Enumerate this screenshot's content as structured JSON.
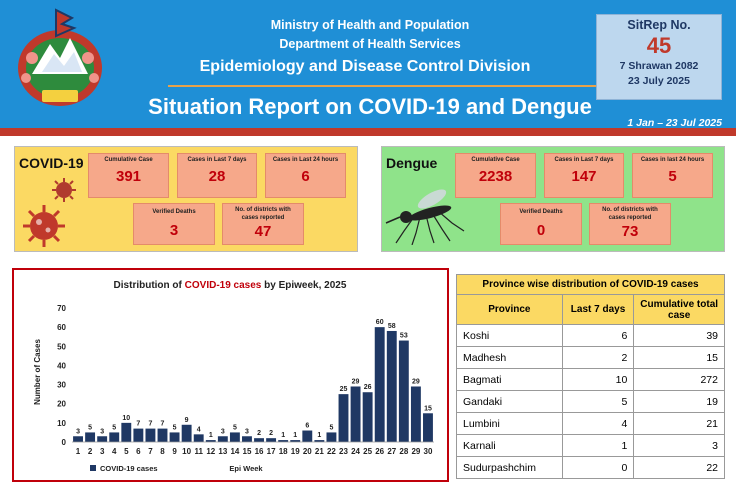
{
  "header": {
    "ministry": "Ministry of Health and Population",
    "department": "Department of Health Services",
    "division": "Epidemiology and Disease Control Division",
    "title": "Situation Report on COVID-19 and Dengue",
    "date_range": "1 Jan – 23 Jul 2025",
    "sitrep_label": "SitRep No.",
    "sitrep_number": "45",
    "date_nepali": "7 Shrawan 2082",
    "date_english": "23 July 2025",
    "colors": {
      "header_bg": "#1f8fd6",
      "accent_red": "#c0392b"
    }
  },
  "covid": {
    "name": "COVID-19",
    "cumulative_label": "Cumulative Case",
    "cumulative_value": "391",
    "last7_label": "Cases in Last 7 days",
    "last7_value": "28",
    "last24_label": "Cases in Last 24 hours",
    "last24_value": "6",
    "deaths_label": "Verified Deaths",
    "deaths_value": "3",
    "districts_label": "No. of districts with cases reported",
    "districts_value": "47",
    "icon": "virus-icon"
  },
  "dengue": {
    "name": "Dengue",
    "cumulative_label": "Cumulative Case",
    "cumulative_value": "2238",
    "last7_label": "Cases in Last 7 days",
    "last7_value": "147",
    "last24_label": "Cases in last 24 hours",
    "last24_value": "5",
    "deaths_label": "Verified Deaths",
    "deaths_value": "0",
    "districts_label": "No. of districts with cases reported",
    "districts_value": "73",
    "icon": "mosquito-icon"
  },
  "chart_data": {
    "type": "bar",
    "title_prefix": "Distribution of ",
    "title_highlight": "COVID-19 cases",
    "title_suffix": " by Epiweek, 2025",
    "xlabel": "Epi Week",
    "ylabel": "Number of Cases",
    "legend": "COVID-19 cases",
    "legend_position": "bottom-left",
    "ylim": [
      0,
      70
    ],
    "yticks": [
      0,
      10,
      20,
      30,
      40,
      50,
      60,
      70
    ],
    "categories": [
      "1",
      "2",
      "3",
      "4",
      "5",
      "6",
      "7",
      "8",
      "9",
      "10",
      "11",
      "12",
      "13",
      "14",
      "15",
      "16",
      "17",
      "18",
      "19",
      "20",
      "21",
      "22",
      "23",
      "24",
      "25",
      "26",
      "27",
      "28",
      "29",
      "30"
    ],
    "values": [
      3,
      5,
      3,
      5,
      10,
      7,
      7,
      7,
      5,
      9,
      4,
      1,
      3,
      5,
      3,
      2,
      2,
      1,
      1,
      6,
      1,
      5,
      25,
      29,
      26,
      60,
      58,
      53,
      29,
      15
    ],
    "bar_color": "#1f3864",
    "highlight_color": "#c0000a",
    "grid": false
  },
  "province_table": {
    "title": "Province wise distribution of COVID-19 cases",
    "headers": [
      "Province",
      "Last 7 days",
      "Cumulative total case"
    ],
    "rows": [
      {
        "province": "Koshi",
        "last7": "6",
        "cumulative": "39"
      },
      {
        "province": "Madhesh",
        "last7": "2",
        "cumulative": "15"
      },
      {
        "province": "Bagmati",
        "last7": "10",
        "cumulative": "272"
      },
      {
        "province": "Gandaki",
        "last7": "5",
        "cumulative": "19"
      },
      {
        "province": "Lumbini",
        "last7": "4",
        "cumulative": "21"
      },
      {
        "province": "Karnali",
        "last7": "1",
        "cumulative": "3"
      },
      {
        "province": "Sudurpashchim",
        "last7": "0",
        "cumulative": "22"
      }
    ]
  }
}
